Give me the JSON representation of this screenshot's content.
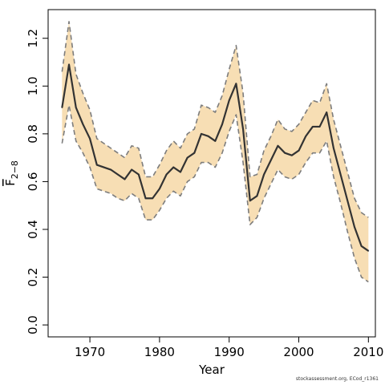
{
  "chart_data": {
    "type": "area",
    "xlabel": "Year",
    "ylabel": "F",
    "ylabel_subscript": "2−8",
    "xlim": [
      1964,
      2011
    ],
    "ylim": [
      -0.05,
      1.32
    ],
    "xticks": [
      1970,
      1980,
      1990,
      2000,
      2010
    ],
    "yticks": [
      0.0,
      0.2,
      0.4,
      0.6,
      0.8,
      1.0,
      1.2
    ],
    "ytick_labels": [
      "0.0",
      "0.2",
      "0.4",
      "0.6",
      "0.8",
      "1.0",
      "1.2"
    ],
    "grid": false,
    "x": [
      1966,
      1967,
      1968,
      1969,
      1970,
      1971,
      1972,
      1973,
      1974,
      1975,
      1976,
      1977,
      1978,
      1979,
      1980,
      1981,
      1982,
      1983,
      1984,
      1985,
      1986,
      1987,
      1988,
      1989,
      1990,
      1991,
      1992,
      1993,
      1994,
      1995,
      1996,
      1997,
      1998,
      1999,
      2000,
      2001,
      2002,
      2003,
      2004,
      2005,
      2006,
      2007,
      2008,
      2009,
      2010
    ],
    "series": [
      {
        "role": "estimate",
        "values": [
          0.91,
          1.09,
          0.91,
          0.84,
          0.78,
          0.67,
          0.66,
          0.65,
          0.63,
          0.61,
          0.65,
          0.63,
          0.53,
          0.53,
          0.57,
          0.63,
          0.66,
          0.64,
          0.7,
          0.72,
          0.8,
          0.79,
          0.77,
          0.84,
          0.94,
          1.01,
          0.82,
          0.52,
          0.54,
          0.63,
          0.69,
          0.75,
          0.72,
          0.71,
          0.73,
          0.79,
          0.83,
          0.83,
          0.89,
          0.74,
          0.63,
          0.52,
          0.41,
          0.33,
          0.31
        ]
      },
      {
        "role": "upper",
        "values": [
          1.06,
          1.27,
          1.05,
          0.97,
          0.9,
          0.78,
          0.76,
          0.74,
          0.72,
          0.7,
          0.75,
          0.74,
          0.62,
          0.62,
          0.67,
          0.73,
          0.77,
          0.74,
          0.8,
          0.82,
          0.92,
          0.91,
          0.89,
          0.96,
          1.07,
          1.17,
          0.97,
          0.62,
          0.63,
          0.73,
          0.79,
          0.86,
          0.82,
          0.81,
          0.84,
          0.89,
          0.94,
          0.93,
          1.01,
          0.86,
          0.75,
          0.64,
          0.53,
          0.47,
          0.45
        ]
      },
      {
        "role": "lower",
        "values": [
          0.76,
          0.92,
          0.77,
          0.72,
          0.66,
          0.57,
          0.56,
          0.55,
          0.53,
          0.52,
          0.55,
          0.53,
          0.44,
          0.44,
          0.48,
          0.53,
          0.56,
          0.54,
          0.6,
          0.62,
          0.68,
          0.68,
          0.66,
          0.72,
          0.81,
          0.88,
          0.68,
          0.42,
          0.45,
          0.53,
          0.59,
          0.65,
          0.62,
          0.61,
          0.63,
          0.68,
          0.72,
          0.72,
          0.77,
          0.62,
          0.51,
          0.39,
          0.28,
          0.2,
          0.18
        ]
      }
    ],
    "colors": {
      "band": "#f7deb4",
      "estimate": "#333333",
      "bounds": "#7d7d7d",
      "axes": "#000000"
    }
  },
  "credit": "stockassessment.org, ECod_r1361"
}
